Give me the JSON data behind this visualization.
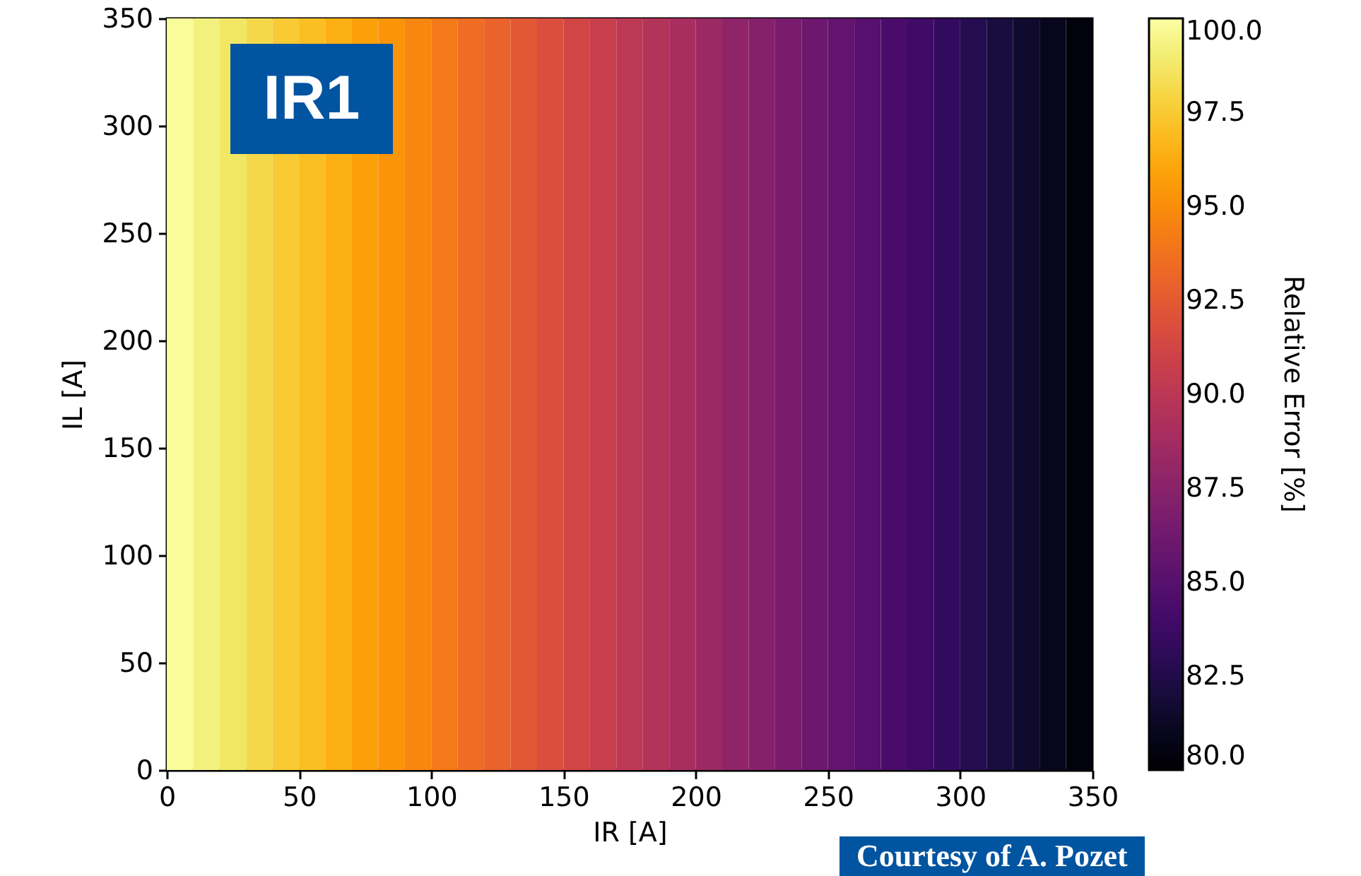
{
  "chart_data": {
    "type": "heatmap",
    "xlabel": "IR [A]",
    "ylabel": "IL [A]",
    "clabel": "Relative Error [%]",
    "x": [
      5,
      15,
      25,
      35,
      45,
      55,
      65,
      75,
      85,
      95,
      105,
      115,
      125,
      135,
      145,
      155,
      165,
      175,
      185,
      195,
      205,
      215,
      225,
      235,
      245,
      255,
      265,
      275,
      285,
      295,
      305,
      315,
      325,
      335,
      345
    ],
    "cells": [
      [
        99.8,
        99.2,
        98.7,
        98.1,
        97.5,
        97.0,
        96.4,
        95.8,
        95.3,
        94.7,
        94.1,
        93.5,
        93.0,
        92.4,
        91.8,
        91.3,
        90.7,
        90.1,
        89.6,
        89.0,
        88.4,
        87.8,
        87.3,
        86.7,
        86.1,
        85.6,
        85.0,
        84.4,
        83.9,
        83.3,
        82.7,
        82.1,
        81.6,
        81.0,
        80.4
      ]
    ],
    "xlim": [
      0,
      350
    ],
    "xticks": [
      0,
      50,
      100,
      150,
      200,
      250,
      300,
      350
    ],
    "ylim": [
      0,
      350
    ],
    "yticks": [
      0,
      50,
      100,
      150,
      200,
      250,
      300,
      350
    ],
    "clim": [
      80,
      100
    ],
    "cticks": [
      {
        "value": 80,
        "label": "80.0"
      },
      {
        "value": 82.5,
        "label": "82.5"
      },
      {
        "value": 85,
        "label": "85.0"
      },
      {
        "value": 87.5,
        "label": "87.5"
      },
      {
        "value": 90,
        "label": "90.0"
      },
      {
        "value": 92.5,
        "label": "92.5"
      },
      {
        "value": 95,
        "label": "95.0"
      },
      {
        "value": 97.5,
        "label": "97.5"
      },
      {
        "value": 100,
        "label": "100.0"
      }
    ],
    "annotations": [
      "IR1",
      "Courtesy of A. Pozet"
    ]
  }
}
